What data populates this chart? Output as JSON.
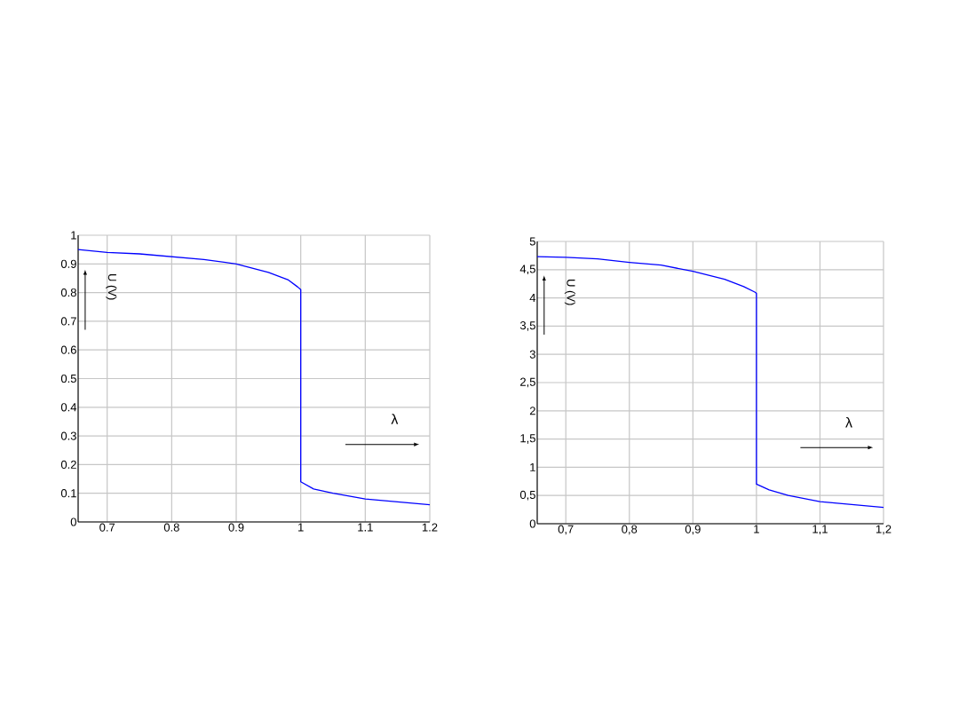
{
  "chart_data": [
    {
      "type": "line",
      "xlabel": "λ",
      "ylabel": "U (V)",
      "xlim": [
        0.655,
        1.2
      ],
      "ylim": [
        0,
        1
      ],
      "xticks": [
        0.7,
        0.8,
        0.9,
        1,
        1.1,
        1.2
      ],
      "yticks": [
        0,
        0.1,
        0.2,
        0.3,
        0.4,
        0.5,
        0.6,
        0.7,
        0.8,
        0.9,
        1
      ],
      "grid": true,
      "marker": "none",
      "line_style": "solid",
      "series": [
        {
          "color": "#0000ff",
          "x": [
            0.655,
            0.7,
            0.75,
            0.8,
            0.85,
            0.9,
            0.95,
            0.98,
            0.995,
            1.0,
            1.0,
            1.02,
            1.05,
            1.1,
            1.15,
            1.2
          ],
          "values": [
            0.95,
            0.94,
            0.935,
            0.925,
            0.915,
            0.9,
            0.87,
            0.845,
            0.82,
            0.81,
            0.14,
            0.115,
            0.1,
            0.08,
            0.07,
            0.06
          ]
        }
      ]
    },
    {
      "type": "line",
      "xlabel": "λ",
      "ylabel": "U (V)",
      "xlim": [
        0.655,
        1.2
      ],
      "ylim": [
        0,
        5
      ],
      "xticks": [
        {
          "value": 0.7,
          "label": "0,7"
        },
        {
          "value": 0.8,
          "label": "0,8"
        },
        {
          "value": 0.9,
          "label": "0,9"
        },
        1,
        {
          "value": 1.1,
          "label": "1,1"
        },
        {
          "value": 1.2,
          "label": "1,2"
        }
      ],
      "yticks": [
        0,
        {
          "value": 0.5,
          "label": "0,5"
        },
        1,
        {
          "value": 1.5,
          "label": "1,5"
        },
        2,
        {
          "value": 2.5,
          "label": "2,5"
        },
        3,
        {
          "value": 3.5,
          "label": "3,5"
        },
        4,
        {
          "value": 4.5,
          "label": "4,5"
        },
        5
      ],
      "grid": true,
      "marker": "none",
      "line_style": "solid",
      "series": [
        {
          "color": "#0000ff",
          "x": [
            0.655,
            0.7,
            0.75,
            0.8,
            0.85,
            0.9,
            0.95,
            0.98,
            0.998,
            1.0,
            1.0,
            1.02,
            1.05,
            1.1,
            1.15,
            1.2
          ],
          "values": [
            4.73,
            4.72,
            4.69,
            4.63,
            4.58,
            4.47,
            4.33,
            4.2,
            4.1,
            4.08,
            0.7,
            0.6,
            0.5,
            0.39,
            0.34,
            0.29
          ]
        }
      ]
    }
  ]
}
